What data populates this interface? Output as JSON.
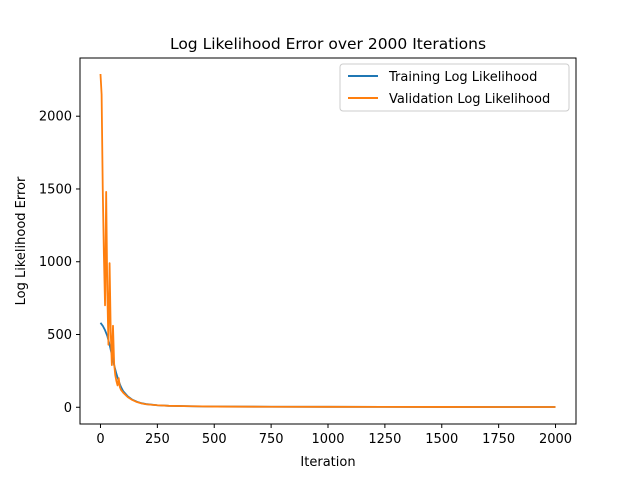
{
  "chart_data": {
    "type": "line",
    "title": "Log Likelihood Error over 2000 Iterations",
    "xlabel": "Iteration",
    "ylabel": "Log Likelihood Error",
    "xlim": [
      -90,
      2090
    ],
    "ylim": [
      -115,
      2400
    ],
    "xticks": [
      0,
      250,
      500,
      750,
      1000,
      1250,
      1500,
      1750,
      2000
    ],
    "yticks": [
      0,
      500,
      1000,
      1500,
      2000
    ],
    "grid": false,
    "legend": "top-right",
    "series": [
      {
        "name": "Training Log Likelihood",
        "color": "#1f77b4",
        "x": [
          0,
          10,
          20,
          30,
          40,
          50,
          60,
          70,
          80,
          90,
          100,
          120,
          140,
          160,
          180,
          200,
          250,
          300,
          400,
          500,
          750,
          1000,
          1250,
          1500,
          1750,
          2000
        ],
        "y": [
          580,
          560,
          530,
          490,
          430,
          360,
          290,
          230,
          180,
          140,
          110,
          75,
          52,
          38,
          28,
          22,
          14,
          10,
          7,
          5,
          3.5,
          3,
          2.5,
          2.2,
          2,
          1.8
        ]
      },
      {
        "name": "Validation Log Likelihood",
        "color": "#ff7f0e",
        "x": [
          0,
          5,
          10,
          15,
          20,
          25,
          30,
          35,
          40,
          45,
          50,
          55,
          60,
          65,
          70,
          75,
          80,
          85,
          90,
          100,
          120,
          140,
          160,
          180,
          200,
          250,
          300,
          400,
          500,
          750,
          1000,
          1250,
          1500,
          1750,
          2000
        ],
        "y": [
          2290,
          2150,
          1500,
          1050,
          700,
          1480,
          800,
          430,
          990,
          520,
          290,
          560,
          300,
          220,
          180,
          150,
          200,
          140,
          120,
          100,
          70,
          50,
          36,
          27,
          21,
          14,
          10,
          7,
          5,
          3.5,
          3,
          2.5,
          2.2,
          2,
          1.8
        ]
      }
    ]
  }
}
